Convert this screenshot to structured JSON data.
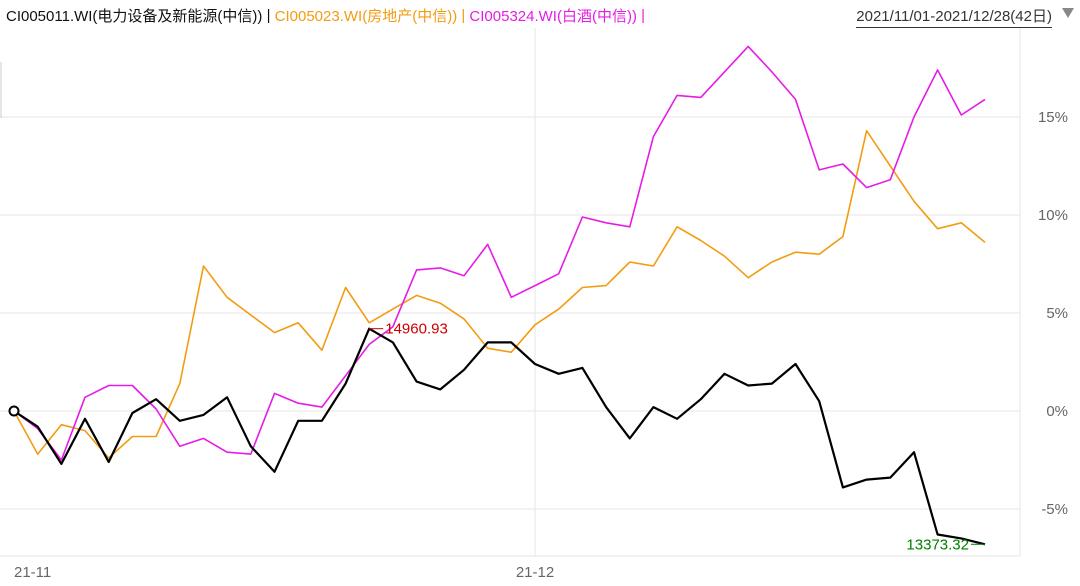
{
  "legend": [
    {
      "text": "CI005011.WI(电力设备及新能源(中信))",
      "color": "#111111"
    },
    {
      "text": " | ",
      "color": "#111111"
    },
    {
      "text": "CI005023.WI(房地产(中信))",
      "color": "#f39c12"
    },
    {
      "text": " | ",
      "color": "#f39c12"
    },
    {
      "text": "CI005324.WI(白酒(中信))",
      "color": "#e61ce6"
    },
    {
      "text": " |",
      "color": "#e61ce6"
    }
  ],
  "date_range": "2021/11/01-2021/12/28(42日)",
  "chart_data": {
    "type": "line",
    "y_ticks": [
      {
        "value": 15,
        "label": "15%"
      },
      {
        "value": 10,
        "label": "10%"
      },
      {
        "value": 5,
        "label": "5%"
      },
      {
        "value": 0,
        "label": "0%"
      },
      {
        "value": -5,
        "label": "-5%"
      }
    ],
    "x_ticks": [
      {
        "index": 0,
        "label": "21-11"
      },
      {
        "index": 22,
        "label": "21-12"
      }
    ],
    "ylim": [
      -7.5,
      20.5
    ],
    "series": [
      {
        "name": "CI005011.WI(电力设备及新能源(中信))",
        "color": "#000000",
        "values": [
          0,
          -0.8,
          -2.7,
          -0.4,
          -2.6,
          -0.1,
          0.6,
          -0.5,
          -0.2,
          0.7,
          -1.8,
          -3.1,
          -0.5,
          -0.5,
          1.4,
          4.2,
          3.5,
          1.5,
          1.1,
          2.1,
          3.5,
          3.5,
          2.4,
          1.9,
          2.2,
          0.2,
          -1.4,
          0.2,
          -0.4,
          0.6,
          1.9,
          1.3,
          1.4,
          2.4,
          0.5,
          -3.9,
          -3.5,
          -3.4,
          -2.1,
          -6.3,
          -6.5,
          -6.8
        ]
      },
      {
        "name": "CI005023.WI(房地产(中信))",
        "color": "#f39c12",
        "values": [
          0,
          -2.2,
          -0.7,
          -1.0,
          -2.4,
          -1.3,
          -1.3,
          1.4,
          7.4,
          5.8,
          4.9,
          4.0,
          4.5,
          3.1,
          6.3,
          4.5,
          5.2,
          5.9,
          5.5,
          4.7,
          3.2,
          3.0,
          4.4,
          5.2,
          6.3,
          6.4,
          7.6,
          7.4,
          9.4,
          8.7,
          7.9,
          6.8,
          7.6,
          8.1,
          8.0,
          8.9,
          14.3,
          12.5,
          10.7,
          9.3,
          9.6,
          8.6
        ]
      },
      {
        "name": "CI005324.WI(白酒(中信))",
        "color": "#e61ce6",
        "values": [
          0,
          -0.9,
          -2.5,
          0.7,
          1.3,
          1.3,
          0.1,
          -1.8,
          -1.4,
          -2.1,
          -2.2,
          0.9,
          0.4,
          0.2,
          1.8,
          3.4,
          4.3,
          7.2,
          7.3,
          6.9,
          8.5,
          5.8,
          6.4,
          7.0,
          9.9,
          9.6,
          9.4,
          14.0,
          16.1,
          16.0,
          17.3,
          18.6,
          17.3,
          15.9,
          12.3,
          12.6,
          11.4,
          11.8,
          15.0,
          17.4,
          15.1,
          15.9
        ]
      }
    ],
    "annotations": [
      {
        "text": "14960.93",
        "color": "#cc0000",
        "series": 0,
        "index": 15
      },
      {
        "text": "13373.32",
        "color": "#008000",
        "series": 0,
        "index": 41
      }
    ],
    "grid": true
  }
}
